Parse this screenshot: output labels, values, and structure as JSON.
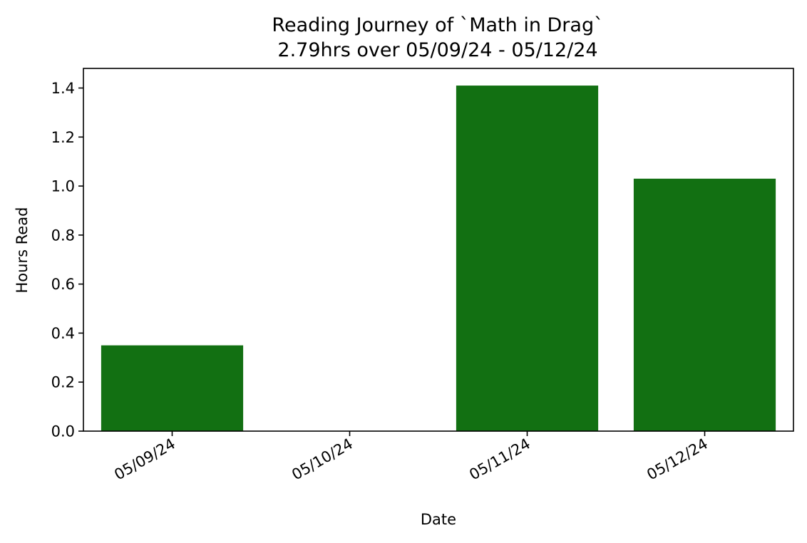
{
  "chart_data": {
    "type": "bar",
    "title": "Reading Journey of `Math in Drag`",
    "subtitle": "2.79hrs over 05/09/24 - 05/12/24",
    "xlabel": "Date",
    "ylabel": "Hours Read",
    "categories": [
      "05/09/24",
      "05/10/24",
      "05/11/24",
      "05/12/24"
    ],
    "values": [
      0.35,
      0.0,
      1.41,
      1.03
    ],
    "ylim": [
      0,
      1.48
    ],
    "yticks": [
      "0.0",
      "0.2",
      "0.4",
      "0.6",
      "0.8",
      "1.0",
      "1.2",
      "1.4"
    ],
    "grid": false,
    "legend": "none",
    "bar_color": "#127012"
  }
}
